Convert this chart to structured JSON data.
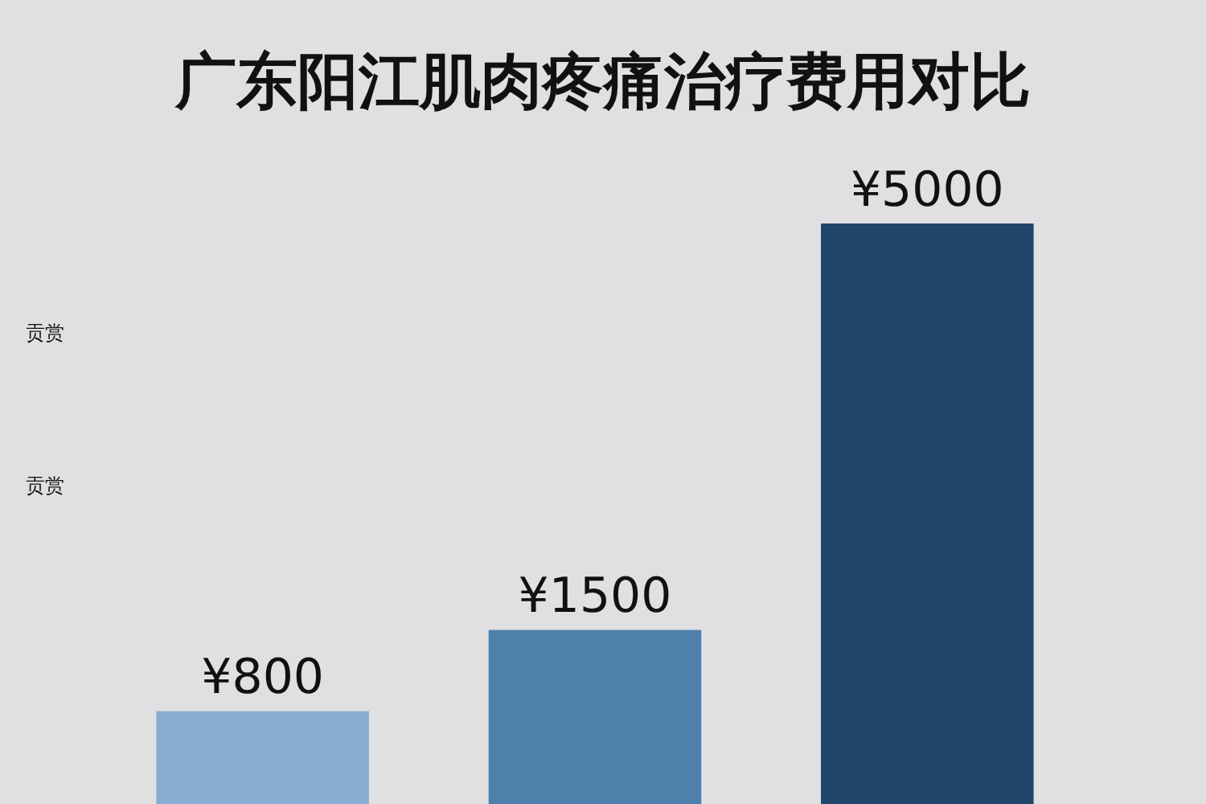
{
  "chart_data": {
    "type": "bar",
    "title": "广东阳江肌肉疼痛治疗费用对比",
    "categories": [
      null,
      null,
      null
    ],
    "values": [
      800,
      1500,
      5000
    ],
    "colors": [
      "#87aed1",
      "#4f7fab",
      "#1f4569"
    ],
    "value_labels": [
      "¥800",
      "¥1500",
      "¥5000"
    ],
    "annotations": [
      "贡赏",
      "贡赏"
    ],
    "grid": false,
    "legend": false
  }
}
